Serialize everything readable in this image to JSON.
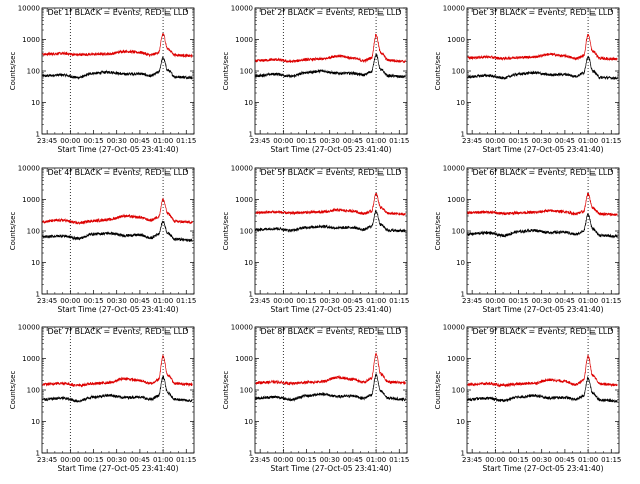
{
  "figure": {
    "ylabel": "Counts/sec",
    "xlabel": "Start Time (27-Oct-05 23:41:40)"
  },
  "chart_data": [
    {
      "type": "line",
      "title": "Det 1f BLACK = Events, RED = LLD",
      "xlabel": "Start Time (27-Oct-05 23:41:40)",
      "ylabel": "Counts/sec",
      "yscale": "log",
      "ylim": [
        1,
        10000
      ],
      "xlim": [
        "23:41:40",
        "01:20:00"
      ],
      "x_ticks": [
        "23:45",
        "00:00",
        "00:15",
        "00:30",
        "00:45",
        "01:00",
        "01:15"
      ],
      "y_ticks": [
        "1",
        "10",
        "100",
        "1000",
        "10000"
      ],
      "dotted_vlines": [
        "00:00",
        "01:00"
      ],
      "series": [
        {
          "name": "Events",
          "color": "#000000",
          "x": [
            "23:42",
            "23:55",
            "00:05",
            "00:15",
            "00:25",
            "00:35",
            "00:45",
            "00:52",
            "00:57",
            "01:00",
            "01:03",
            "01:08",
            "01:19"
          ],
          "y": [
            70,
            75,
            62,
            85,
            92,
            80,
            82,
            70,
            90,
            260,
            105,
            65,
            62
          ]
        },
        {
          "name": "LLD",
          "color": "#dd0000",
          "x": [
            "23:42",
            "23:55",
            "00:05",
            "00:15",
            "00:25",
            "00:35",
            "00:45",
            "00:52",
            "00:57",
            "01:00",
            "01:03",
            "01:08",
            "01:19"
          ],
          "y": [
            340,
            360,
            330,
            340,
            350,
            420,
            390,
            320,
            380,
            1500,
            500,
            320,
            300
          ]
        }
      ]
    },
    {
      "type": "line",
      "title": "Det 2f BLACK = Events, RED = LLD",
      "xlabel": "Start Time (27-Oct-05 23:41:40)",
      "ylabel": "Counts/sec",
      "yscale": "log",
      "ylim": [
        1,
        10000
      ],
      "xlim": [
        "23:41:40",
        "01:20:00"
      ],
      "x_ticks": [
        "23:45",
        "00:00",
        "00:15",
        "00:30",
        "00:45",
        "01:00",
        "01:15"
      ],
      "y_ticks": [
        "1",
        "10",
        "100",
        "1000",
        "10000"
      ],
      "dotted_vlines": [
        "00:00",
        "01:00"
      ],
      "series": [
        {
          "name": "Events",
          "color": "#000000",
          "x": [
            "23:42",
            "23:55",
            "00:05",
            "00:15",
            "00:25",
            "00:35",
            "00:45",
            "00:52",
            "00:57",
            "01:00",
            "01:03",
            "01:08",
            "01:19"
          ],
          "y": [
            70,
            80,
            68,
            90,
            100,
            85,
            85,
            75,
            95,
            330,
            110,
            70,
            65
          ]
        },
        {
          "name": "LLD",
          "color": "#dd0000",
          "x": [
            "23:42",
            "23:55",
            "00:05",
            "00:15",
            "00:25",
            "00:35",
            "00:45",
            "00:52",
            "00:57",
            "01:00",
            "01:03",
            "01:08",
            "01:19"
          ],
          "y": [
            210,
            230,
            200,
            230,
            240,
            300,
            260,
            210,
            260,
            1400,
            380,
            220,
            200
          ]
        }
      ]
    },
    {
      "type": "line",
      "title": "Det 3f BLACK = Events, RED = LLD",
      "xlabel": "Start Time (27-Oct-05 23:41:40)",
      "ylabel": "Counts/sec",
      "yscale": "log",
      "ylim": [
        1,
        10000
      ],
      "xlim": [
        "23:41:40",
        "01:20:00"
      ],
      "x_ticks": [
        "23:45",
        "00:00",
        "00:15",
        "00:30",
        "00:45",
        "01:00",
        "01:15"
      ],
      "y_ticks": [
        "1",
        "10",
        "100",
        "1000",
        "10000"
      ],
      "dotted_vlines": [
        "00:00",
        "01:00"
      ],
      "series": [
        {
          "name": "Events",
          "color": "#000000",
          "x": [
            "23:42",
            "23:55",
            "00:05",
            "00:15",
            "00:25",
            "00:35",
            "00:45",
            "00:52",
            "00:57",
            "01:00",
            "01:03",
            "01:08",
            "01:19"
          ],
          "y": [
            65,
            72,
            60,
            80,
            88,
            76,
            78,
            68,
            86,
            280,
            100,
            62,
            60
          ]
        },
        {
          "name": "LLD",
          "color": "#dd0000",
          "x": [
            "23:42",
            "23:55",
            "00:05",
            "00:15",
            "00:25",
            "00:35",
            "00:45",
            "00:52",
            "00:57",
            "01:00",
            "01:03",
            "01:08",
            "01:19"
          ],
          "y": [
            260,
            280,
            250,
            270,
            280,
            340,
            300,
            250,
            300,
            1400,
            420,
            250,
            240
          ]
        }
      ]
    },
    {
      "type": "line",
      "title": "Det 4f BLACK = Events, RED = LLD",
      "xlabel": "Start Time (27-Oct-05 23:41:40)",
      "ylabel": "Counts/sec",
      "yscale": "log",
      "ylim": [
        1,
        10000
      ],
      "xlim": [
        "23:41:40",
        "01:20:00"
      ],
      "x_ticks": [
        "23:45",
        "00:00",
        "00:15",
        "00:30",
        "00:45",
        "01:00",
        "01:15"
      ],
      "y_ticks": [
        "1",
        "10",
        "100",
        "1000",
        "10000"
      ],
      "dotted_vlines": [
        "00:00",
        "01:00"
      ],
      "series": [
        {
          "name": "Events",
          "color": "#000000",
          "x": [
            "23:42",
            "23:55",
            "00:05",
            "00:15",
            "00:25",
            "00:35",
            "00:45",
            "00:52",
            "00:57",
            "01:00",
            "01:03",
            "01:08",
            "01:19"
          ],
          "y": [
            65,
            70,
            58,
            80,
            85,
            72,
            75,
            60,
            80,
            200,
            85,
            55,
            50
          ]
        },
        {
          "name": "LLD",
          "color": "#dd0000",
          "x": [
            "23:42",
            "23:55",
            "00:05",
            "00:15",
            "00:25",
            "00:35",
            "00:45",
            "00:52",
            "00:57",
            "01:00",
            "01:03",
            "01:08",
            "01:19"
          ],
          "y": [
            200,
            220,
            180,
            210,
            230,
            300,
            270,
            220,
            280,
            1000,
            360,
            200,
            190
          ]
        }
      ]
    },
    {
      "type": "line",
      "title": "Det 5f BLACK = Events, RED = LLD",
      "xlabel": "Start Time (27-Oct-05 23:41:40)",
      "ylabel": "Counts/sec",
      "yscale": "log",
      "ylim": [
        1,
        10000
      ],
      "xlim": [
        "23:41:40",
        "01:20:00"
      ],
      "x_ticks": [
        "23:45",
        "00:00",
        "00:15",
        "00:30",
        "00:45",
        "01:00",
        "01:15"
      ],
      "y_ticks": [
        "1",
        "10",
        "100",
        "1000",
        "10000"
      ],
      "dotted_vlines": [
        "00:00",
        "01:00"
      ],
      "series": [
        {
          "name": "Events",
          "color": "#000000",
          "x": [
            "23:42",
            "23:55",
            "00:05",
            "00:15",
            "00:25",
            "00:35",
            "00:45",
            "00:52",
            "00:57",
            "01:00",
            "01:03",
            "01:08",
            "01:19"
          ],
          "y": [
            110,
            120,
            105,
            130,
            140,
            125,
            130,
            110,
            140,
            420,
            160,
            105,
            100
          ]
        },
        {
          "name": "LLD",
          "color": "#dd0000",
          "x": [
            "23:42",
            "23:55",
            "00:05",
            "00:15",
            "00:25",
            "00:35",
            "00:45",
            "00:52",
            "00:57",
            "01:00",
            "01:03",
            "01:08",
            "01:19"
          ],
          "y": [
            380,
            400,
            370,
            390,
            400,
            460,
            430,
            360,
            420,
            1500,
            560,
            360,
            340
          ]
        }
      ]
    },
    {
      "type": "line",
      "title": "Det 6f BLACK = Events, RED = LLD",
      "xlabel": "Start Time (27-Oct-05 23:41:40)",
      "ylabel": "Counts/sec",
      "yscale": "log",
      "ylim": [
        1,
        10000
      ],
      "xlim": [
        "23:41:40",
        "01:20:00"
      ],
      "x_ticks": [
        "23:45",
        "00:00",
        "00:15",
        "00:30",
        "00:45",
        "01:00",
        "01:15"
      ],
      "y_ticks": [
        "1",
        "10",
        "100",
        "1000",
        "10000"
      ],
      "dotted_vlines": [
        "00:00",
        "01:00"
      ],
      "series": [
        {
          "name": "Events",
          "color": "#000000",
          "x": [
            "23:42",
            "23:55",
            "00:05",
            "00:15",
            "00:25",
            "00:35",
            "00:45",
            "00:52",
            "00:57",
            "01:00",
            "01:03",
            "01:08",
            "01:19"
          ],
          "y": [
            80,
            88,
            72,
            95,
            105,
            90,
            92,
            78,
            98,
            340,
            115,
            72,
            68
          ]
        },
        {
          "name": "LLD",
          "color": "#dd0000",
          "x": [
            "23:42",
            "23:55",
            "00:05",
            "00:15",
            "00:25",
            "00:35",
            "00:45",
            "00:52",
            "00:57",
            "01:00",
            "01:03",
            "01:08",
            "01:19"
          ],
          "y": [
            380,
            400,
            360,
            380,
            390,
            440,
            410,
            350,
            410,
            1500,
            540,
            350,
            330
          ]
        }
      ]
    },
    {
      "type": "line",
      "title": "Det 7f BLACK = Events, RED = LLD",
      "xlabel": "Start Time (27-Oct-05 23:41:40)",
      "ylabel": "Counts/sec",
      "yscale": "log",
      "ylim": [
        1,
        10000
      ],
      "xlim": [
        "23:41:40",
        "01:20:00"
      ],
      "x_ticks": [
        "23:45",
        "00:00",
        "00:15",
        "00:30",
        "00:45",
        "01:00",
        "01:15"
      ],
      "y_ticks": [
        "1",
        "10",
        "100",
        "1000",
        "10000"
      ],
      "dotted_vlines": [
        "00:00",
        "01:00"
      ],
      "series": [
        {
          "name": "Events",
          "color": "#000000",
          "x": [
            "23:42",
            "23:55",
            "00:05",
            "00:15",
            "00:25",
            "00:35",
            "00:45",
            "00:52",
            "00:57",
            "01:00",
            "01:03",
            "01:08",
            "01:19"
          ],
          "y": [
            50,
            55,
            45,
            60,
            68,
            58,
            60,
            50,
            65,
            260,
            80,
            50,
            45
          ]
        },
        {
          "name": "LLD",
          "color": "#dd0000",
          "x": [
            "23:42",
            "23:55",
            "00:05",
            "00:15",
            "00:25",
            "00:35",
            "00:45",
            "00:52",
            "00:57",
            "01:00",
            "01:03",
            "01:08",
            "01:19"
          ],
          "y": [
            150,
            165,
            140,
            160,
            170,
            230,
            200,
            160,
            210,
            1200,
            300,
            160,
            150
          ]
        }
      ]
    },
    {
      "type": "line",
      "title": "Det 8f BLACK = Events, RED = LLD",
      "xlabel": "Start Time (27-Oct-05 23:41:40)",
      "ylabel": "Counts/sec",
      "yscale": "log",
      "ylim": [
        1,
        10000
      ],
      "xlim": [
        "23:41:40",
        "01:20:00"
      ],
      "x_ticks": [
        "23:45",
        "00:00",
        "00:15",
        "00:30",
        "00:45",
        "01:00",
        "01:15"
      ],
      "y_ticks": [
        "1",
        "10",
        "100",
        "1000",
        "10000"
      ],
      "dotted_vlines": [
        "00:00",
        "01:00"
      ],
      "series": [
        {
          "name": "Events",
          "color": "#000000",
          "x": [
            "23:42",
            "23:55",
            "00:05",
            "00:15",
            "00:25",
            "00:35",
            "00:45",
            "00:52",
            "00:57",
            "01:00",
            "01:03",
            "01:08",
            "01:19"
          ],
          "y": [
            55,
            60,
            50,
            65,
            75,
            62,
            65,
            55,
            70,
            300,
            90,
            55,
            50
          ]
        },
        {
          "name": "LLD",
          "color": "#dd0000",
          "x": [
            "23:42",
            "23:55",
            "00:05",
            "00:15",
            "00:25",
            "00:35",
            "00:45",
            "00:52",
            "00:57",
            "01:00",
            "01:03",
            "01:08",
            "01:19"
          ],
          "y": [
            170,
            180,
            160,
            175,
            185,
            250,
            220,
            175,
            230,
            1400,
            330,
            180,
            170
          ]
        }
      ]
    },
    {
      "type": "line",
      "title": "Det 9f BLACK = Events, RED = LLD",
      "xlabel": "Start Time (27-Oct-05 23:41:40)",
      "ylabel": "Counts/sec",
      "yscale": "log",
      "ylim": [
        1,
        10000
      ],
      "xlim": [
        "23:41:40",
        "01:20:00"
      ],
      "x_ticks": [
        "23:45",
        "00:00",
        "00:15",
        "00:30",
        "00:45",
        "01:00",
        "01:15"
      ],
      "y_ticks": [
        "1",
        "10",
        "100",
        "1000",
        "10000"
      ],
      "dotted_vlines": [
        "00:00",
        "01:00"
      ],
      "series": [
        {
          "name": "Events",
          "color": "#000000",
          "x": [
            "23:42",
            "23:55",
            "00:05",
            "00:15",
            "00:25",
            "00:35",
            "00:45",
            "00:52",
            "00:57",
            "01:00",
            "01:03",
            "01:08",
            "01:19"
          ],
          "y": [
            50,
            55,
            46,
            60,
            66,
            56,
            58,
            50,
            64,
            240,
            78,
            48,
            45
          ]
        },
        {
          "name": "LLD",
          "color": "#dd0000",
          "x": [
            "23:42",
            "23:55",
            "00:05",
            "00:15",
            "00:25",
            "00:35",
            "00:45",
            "00:52",
            "00:57",
            "01:00",
            "01:03",
            "01:08",
            "01:19"
          ],
          "y": [
            150,
            160,
            140,
            155,
            165,
            210,
            190,
            150,
            200,
            1200,
            290,
            155,
            145
          ]
        }
      ]
    }
  ]
}
